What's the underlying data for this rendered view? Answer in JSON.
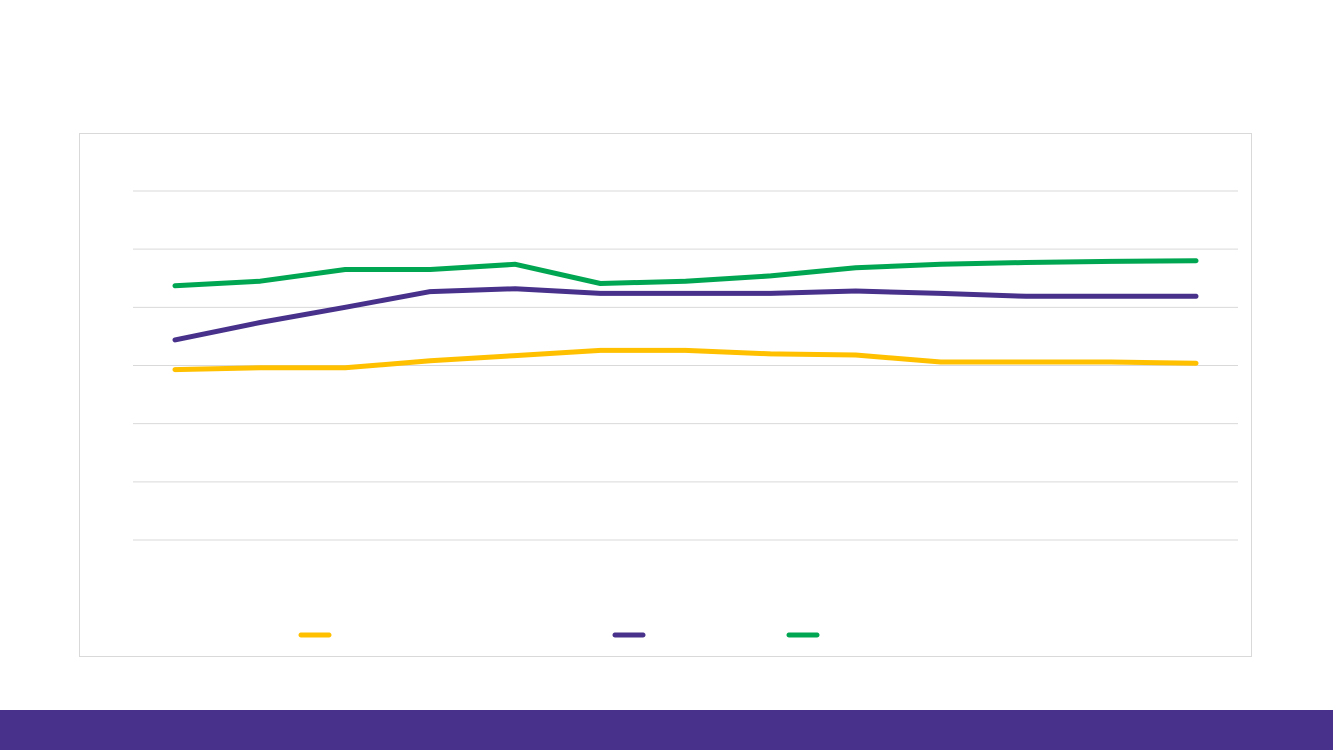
{
  "slide": {
    "title": "",
    "footer_color": "#47318a"
  },
  "chart_data": {
    "type": "line",
    "title": "",
    "xlabel": "",
    "ylabel": "",
    "categories": [
      "",
      "",
      "",
      "",
      "",
      "",
      "",
      "",
      "",
      "",
      "",
      "",
      ""
    ],
    "ylim": [
      0,
      6
    ],
    "grid": true,
    "legend_position": "bottom",
    "series": [
      {
        "name": "",
        "color": "#ffc000",
        "values": [
          2.93,
          2.96,
          2.96,
          3.08,
          3.17,
          3.26,
          3.26,
          3.2,
          3.18,
          3.06,
          3.06,
          3.06,
          3.04
        ]
      },
      {
        "name": "",
        "color": "#47318a",
        "values": [
          3.44,
          3.74,
          4.0,
          4.27,
          4.32,
          4.24,
          4.24,
          4.24,
          4.28,
          4.24,
          4.19,
          4.19,
          4.19
        ]
      },
      {
        "name": "",
        "color": "#00a651",
        "values": [
          4.37,
          4.45,
          4.65,
          4.65,
          4.74,
          4.41,
          4.45,
          4.54,
          4.68,
          4.74,
          4.77,
          4.79,
          4.8
        ]
      }
    ]
  }
}
